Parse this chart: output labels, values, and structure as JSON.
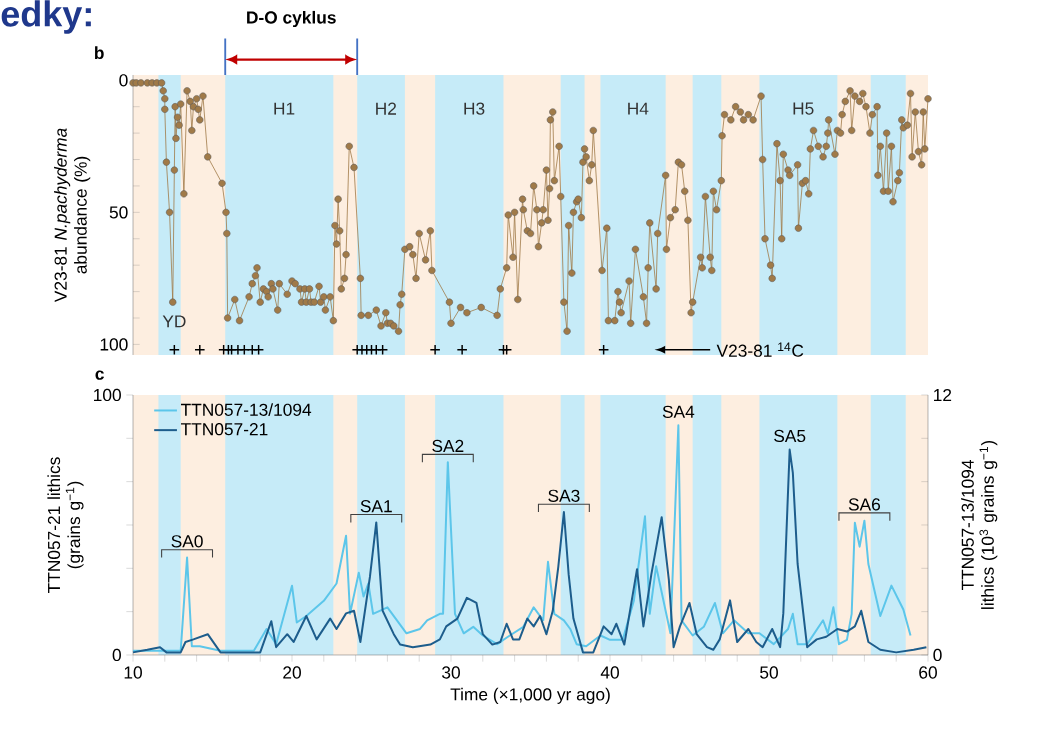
{
  "chart_data": [
    {
      "type": "line",
      "ylabel": "V23-81 *N.pachyderma* abundance (%)",
      "annotations": [
        "edky:",
        "D-O cyklus",
        "b"
      ],
      "xlim": [
        10,
        60
      ],
      "ylim": [
        104,
        -2
      ],
      "yticks": [
        0,
        {
          "value": 10,
          "label": null
        },
        {
          "value": 20,
          "label": null
        },
        {
          "value": 30,
          "label": null
        },
        {
          "value": 40,
          "label": null
        },
        50,
        {
          "value": 60,
          "label": null
        },
        {
          "value": 70,
          "label": null
        },
        {
          "value": 80,
          "label": null
        },
        {
          "value": 90,
          "label": null
        },
        100
      ],
      "tick_labels": "y",
      "marker": "circle",
      "bands": [
        {
          "axis": "x",
          "from": 10,
          "to": 60,
          "color": "#fdeee0"
        },
        {
          "axis": "x",
          "from": 11.6,
          "to": 13.0,
          "label": "YD",
          "color": "#c6ebf8"
        },
        {
          "axis": "x",
          "from": 15.8,
          "to": 22.6,
          "label": "H1",
          "color": "#c6ebf8"
        },
        {
          "axis": "x",
          "from": 24.1,
          "to": 27.1,
          "label": "H2",
          "color": "#c6ebf8"
        },
        {
          "axis": "x",
          "from": 29.0,
          "to": 33.3,
          "label": "H3",
          "color": "#c6ebf8"
        },
        {
          "axis": "x",
          "from": 36.9,
          "to": 38.4,
          "color": "#c6ebf8"
        },
        {
          "axis": "x",
          "from": 39.4,
          "to": 43.5,
          "label": "H4",
          "color": "#c6ebf8"
        },
        {
          "axis": "x",
          "from": 45.2,
          "to": 47.0,
          "color": "#c6ebf8"
        },
        {
          "axis": "x",
          "from": 49.4,
          "to": 54.3,
          "label": "H5",
          "color": "#c6ebf8"
        },
        {
          "axis": "x",
          "from": 56.4,
          "to": 58.6,
          "color": "#c6ebf8"
        }
      ],
      "series": [
        {
          "color": "#a07a48",
          "x": [
            10.0,
            10.2,
            10.5,
            10.9,
            11.2,
            11.5,
            11.8,
            11.9,
            12.0,
            12.0,
            12.1,
            12.3,
            12.5,
            12.6,
            12.65,
            12.7,
            12.8,
            12.9,
            13.0,
            13.2,
            13.4,
            13.6,
            13.7,
            13.8,
            14.0,
            14.1,
            14.2,
            14.4,
            14.7,
            15.6,
            15.85,
            15.9,
            15.95,
            16.4,
            16.7,
            17.3,
            17.5,
            17.7,
            17.8,
            18.0,
            18.2,
            18.4,
            18.5,
            18.7,
            18.8,
            19.1,
            19.2,
            19.7,
            20.0,
            20.2,
            20.5,
            20.6,
            20.8,
            20.9,
            21.1,
            21.2,
            21.4,
            21.7,
            21.8,
            22.0,
            22.1,
            22.4,
            22.6,
            22.7,
            22.8,
            22.9,
            23.0,
            23.1,
            23.3,
            23.4,
            23.6,
            23.9,
            24.3,
            24.35,
            24.8,
            25.3,
            25.6,
            25.9,
            26.0,
            26.2,
            26.4,
            26.7,
            26.8,
            26.9,
            27.1,
            27.4,
            27.6,
            27.8,
            28.0,
            28.4,
            28.7,
            28.8,
            29.9,
            30.0,
            30.6,
            31.0,
            31.9,
            32.9,
            33.1,
            33.5,
            33.6,
            33.9,
            34.0,
            34.2,
            34.5,
            34.55,
            34.8,
            35.0,
            35.2,
            35.4,
            35.5,
            35.7,
            35.8,
            36.0,
            36.1,
            36.2,
            36.25,
            36.4,
            36.5,
            36.8,
            36.9,
            37.1,
            37.3,
            37.4,
            37.6,
            37.7,
            37.9,
            38.0,
            38.2,
            38.3,
            38.4,
            38.5,
            38.7,
            38.85,
            38.95,
            39.5,
            39.8,
            39.9,
            40.3,
            40.5,
            40.6,
            40.7,
            41.2,
            41.3,
            41.6,
            42.1,
            42.3,
            42.4,
            42.5,
            42.9,
            43.0,
            43.5,
            43.55,
            43.8,
            44.1,
            44.3,
            44.5,
            44.7,
            44.9,
            45.1,
            45.2,
            45.7,
            45.8,
            46.0,
            46.3,
            46.4,
            46.5,
            46.7,
            47.0,
            47.05,
            47.2,
            47.6,
            47.9,
            48.2,
            48.4,
            48.7,
            49.0,
            49.5,
            49.6,
            49.75,
            50.1,
            50.2,
            50.5,
            50.7,
            50.8,
            50.9,
            51.2,
            51.3,
            51.8,
            51.85,
            52.1,
            52.3,
            52.5,
            52.6,
            52.8,
            53.1,
            53.4,
            53.6,
            53.7,
            53.75,
            54.15,
            54.3,
            54.5,
            54.6,
            54.8,
            55.1,
            55.2,
            55.4,
            55.7,
            55.9,
            56.1,
            56.35,
            56.5,
            56.8,
            56.85,
            57.0,
            57.2,
            57.4,
            57.5,
            57.7,
            57.8,
            58.1,
            58.2,
            58.35,
            58.45,
            58.7,
            58.9,
            59.0,
            59.2,
            59.4,
            59.6,
            59.7,
            59.8,
            60.0
          ],
          "values": [
            1,
            1,
            1,
            1,
            1,
            1,
            1,
            4,
            7,
            11,
            31,
            50,
            84,
            34,
            10,
            22,
            14,
            17,
            9,
            43,
            4,
            8,
            19,
            10,
            7,
            11,
            15,
            6,
            29,
            39,
            50,
            58,
            90,
            83,
            91,
            82,
            77,
            74,
            71,
            84,
            79,
            80,
            82,
            77,
            79,
            87,
            77,
            81,
            76,
            77,
            79,
            84,
            79,
            84,
            79,
            84,
            84,
            78,
            84,
            82,
            87,
            82,
            91,
            55,
            62,
            45,
            57,
            79,
            75,
            66,
            25,
            33,
            75,
            89,
            89,
            87,
            93,
            88,
            92,
            92,
            93,
            95,
            85,
            81,
            64,
            63,
            66,
            75,
            58,
            68,
            57,
            72,
            84,
            92,
            86,
            88,
            86,
            89,
            79,
            71,
            51,
            67,
            50,
            83,
            45,
            49,
            57,
            58,
            40,
            49,
            63,
            54,
            49,
            34,
            53,
            41,
            15,
            12,
            38,
            25,
            44,
            84,
            95,
            55,
            73,
            50,
            46,
            45,
            52,
            31,
            26,
            29,
            38,
            32,
            19,
            72,
            56,
            91,
            91,
            80,
            84,
            88,
            76,
            92,
            64,
            82,
            92,
            71,
            54,
            79,
            58,
            36,
            64,
            52,
            49,
            31,
            32,
            42,
            53,
            88,
            84,
            67,
            71,
            44,
            67,
            72,
            42,
            49,
            38,
            21,
            13,
            15,
            10,
            12,
            15,
            13,
            15,
            6,
            30,
            60,
            70,
            75,
            24,
            38,
            60,
            28,
            34,
            36,
            32,
            56,
            39,
            38,
            43,
            26,
            19,
            25,
            29,
            25,
            20,
            15,
            28,
            19,
            20,
            13,
            8,
            4,
            19,
            6,
            8,
            5,
            10,
            20,
            13,
            10,
            36,
            25,
            42,
            20,
            42,
            25,
            46,
            38,
            35,
            15,
            18,
            17,
            5,
            29,
            12,
            27,
            32,
            12,
            26,
            7
          ]
        },
        {
          "type": "scatter",
          "name": "V23-81 $^{14}$C",
          "marker": "cross",
          "color": "#000000",
          "x": [
            12.6,
            14.2,
            15.7,
            16.0,
            16.2,
            16.6,
            17.0,
            17.5,
            17.9,
            24.1,
            24.4,
            24.7,
            25.0,
            25.3,
            25.7,
            29.0,
            30.7,
            33.3,
            33.5,
            39.6
          ],
          "values": [
            102,
            102,
            102,
            102,
            102,
            102,
            102,
            102,
            102,
            102,
            102,
            102,
            102,
            102,
            102,
            102,
            102,
            102,
            102,
            102
          ]
        }
      ]
    },
    {
      "type": "line",
      "xlabel": "Time (×1,000 yr ago)",
      "ylabel": "TTN057-21 lithics (grains g$^{−1}$)",
      "y2label": "TTN057-13/1094 lithics (10$^{3}$ grains g$^{−1}$)",
      "annotations": [
        "c",
        {
          "text": "SA0",
          "x": 13.4,
          "y": 37.5
        },
        {
          "text": "SA1",
          "x": 25.3,
          "y": 51
        },
        {
          "text": "SA2",
          "x": 29.8,
          "y": 74.2
        },
        {
          "text": "SA3",
          "x": 37.1,
          "y": 55
        },
        {
          "text": "SA4",
          "x": 44.3,
          "y": 88.3
        },
        {
          "text": "SA5",
          "x": 51.3,
          "y": 79
        },
        {
          "text": "SA6",
          "x": 56.0,
          "y": 51.7
        }
      ],
      "legend": "top left",
      "xlim": [
        10,
        60
      ],
      "xticks": [
        10,
        {
          "value": 12,
          "label": null
        },
        {
          "value": 14,
          "label": null
        },
        {
          "value": 16,
          "label": null
        },
        {
          "value": 18,
          "label": null
        },
        20,
        {
          "value": 22,
          "label": null
        },
        {
          "value": 24,
          "label": null
        },
        {
          "value": 26,
          "label": null
        },
        {
          "value": 28,
          "label": null
        },
        30,
        {
          "value": 32,
          "label": null
        },
        {
          "value": 34,
          "label": null
        },
        {
          "value": 36,
          "label": null
        },
        {
          "value": 38,
          "label": null
        },
        40,
        {
          "value": 42,
          "label": null
        },
        {
          "value": 44,
          "label": null
        },
        {
          "value": 46,
          "label": null
        },
        {
          "value": 48,
          "label": null
        },
        50,
        {
          "value": 52,
          "label": null
        },
        {
          "value": 54,
          "label": null
        },
        {
          "value": 56,
          "label": null
        },
        {
          "value": 58,
          "label": null
        },
        60
      ],
      "ylim": [
        0,
        100
      ],
      "yticks": [
        0,
        {
          "value": 16.67,
          "label": null
        },
        {
          "value": 33.33,
          "label": null
        },
        {
          "value": 50,
          "label": null
        },
        {
          "value": 66.67,
          "label": null
        },
        {
          "value": 83.33,
          "label": null
        },
        100
      ],
      "y2lim": [
        0,
        12
      ],
      "y2ticks": [
        0,
        {
          "value": 2,
          "label": null
        },
        {
          "value": 4,
          "label": null
        },
        {
          "value": 6,
          "label": null
        },
        {
          "value": 8,
          "label": null
        },
        {
          "value": 10,
          "label": null
        },
        12
      ],
      "bands": [
        {
          "axis": "x",
          "from": 10,
          "to": 60,
          "color": "#fdeee0"
        },
        {
          "axis": "x",
          "from": 11.6,
          "to": 13.0,
          "color": "#c6ebf8"
        },
        {
          "axis": "x",
          "from": 15.8,
          "to": 22.6,
          "color": "#c6ebf8"
        },
        {
          "axis": "x",
          "from": 24.1,
          "to": 27.1,
          "color": "#c6ebf8"
        },
        {
          "axis": "x",
          "from": 29.0,
          "to": 33.3,
          "color": "#c6ebf8"
        },
        {
          "axis": "x",
          "from": 36.9,
          "to": 38.4,
          "color": "#c6ebf8"
        },
        {
          "axis": "x",
          "from": 39.4,
          "to": 43.5,
          "color": "#c6ebf8"
        },
        {
          "axis": "x",
          "from": 45.2,
          "to": 47.0,
          "color": "#c6ebf8"
        },
        {
          "axis": "x",
          "from": 49.4,
          "to": 54.3,
          "color": "#c6ebf8"
        },
        {
          "axis": "x",
          "from": 56.4,
          "to": 58.6,
          "color": "#c6ebf8"
        }
      ],
      "series": [
        {
          "name": "TTN057-13/1094",
          "color": "#5cc6ea",
          "axis": "y2",
          "x": [
            10.0,
            11.7,
            13.0,
            13.4,
            13.7,
            14.2,
            15.5,
            17.6,
            18.4,
            19.0,
            20.0,
            20.3,
            20.9,
            22.0,
            22.8,
            23.4,
            23.65,
            24.2,
            24.5,
            24.8,
            25.1,
            26.0,
            26.6,
            27.2,
            28.05,
            28.5,
            29.3,
            29.5,
            29.8,
            30.25,
            30.8,
            31.4,
            32.0,
            32.9,
            33.7,
            34.55,
            35.2,
            35.8,
            36.1,
            36.5,
            37.1,
            37.5,
            37.9,
            38.5,
            39.4,
            40.0,
            40.8,
            41.5,
            42.2,
            42.5,
            42.9,
            43.8,
            44.3,
            44.5,
            45.2,
            45.9,
            46.6,
            47.1,
            47.8,
            48.7,
            49.4,
            50.3,
            51.2,
            51.5,
            51.8,
            52.4,
            53.4,
            53.7,
            54.05,
            54.4,
            54.9,
            55.2,
            55.4,
            55.7,
            56.0,
            56.25,
            57.0,
            57.7,
            58.45,
            58.9
          ],
          "values": [
            0.2,
            0.2,
            0.2,
            4.5,
            0.4,
            0.4,
            0.2,
            0.2,
            1.2,
            0.5,
            3.2,
            1.5,
            1.8,
            2.5,
            3.3,
            5.5,
            1.9,
            3.8,
            2.7,
            3.3,
            1.9,
            2.2,
            1.6,
            1.0,
            1.2,
            1.6,
            1.9,
            1.9,
            8.9,
            1.9,
            1.0,
            1.3,
            0.9,
            0.5,
            0.9,
            1.3,
            2.2,
            1.6,
            4.3,
            1.9,
            1.6,
            1.2,
            0.5,
            0.4,
            0.9,
            0.7,
            0.7,
            2.5,
            6.4,
            1.9,
            4.1,
            1.0,
            10.6,
            1.6,
            0.9,
            1.3,
            2.4,
            1.0,
            1.6,
            1.0,
            1.0,
            0.5,
            1.2,
            1.9,
            0.5,
            0.5,
            1.6,
            1.0,
            2.2,
            0.5,
            0.7,
            1.9,
            6.1,
            5.0,
            6.2,
            4.2,
            1.8,
            3.2,
            2.1,
            0.9
          ]
        },
        {
          "name": "TTN057-21",
          "color": "#1d5d8c",
          "x": [
            10.0,
            10.9,
            11.7,
            12.1,
            13.0,
            13.3,
            13.8,
            14.7,
            15.5,
            18.0,
            18.7,
            19.0,
            19.7,
            20.1,
            20.9,
            21.55,
            22.4,
            22.8,
            23.4,
            23.9,
            24.3,
            24.9,
            25.3,
            25.7,
            26.4,
            26.8,
            27.6,
            28.7,
            29.3,
            29.7,
            30.4,
            31.0,
            31.6,
            32.0,
            32.6,
            33.1,
            33.5,
            33.9,
            34.3,
            34.8,
            35.2,
            35.6,
            36.0,
            36.4,
            36.75,
            37.1,
            37.4,
            37.7,
            38.3,
            38.95,
            39.6,
            40.1,
            40.4,
            40.9,
            41.7,
            42.1,
            42.6,
            43.25,
            43.7,
            44.0,
            44.4,
            45.0,
            45.45,
            46.1,
            46.5,
            46.9,
            47.55,
            48.0,
            48.7,
            49.2,
            49.6,
            50.2,
            50.7,
            50.9,
            51.3,
            51.5,
            51.8,
            52.4,
            53.0,
            53.6,
            54.3,
            54.9,
            55.4,
            55.8,
            56.25,
            57.0,
            58.0,
            59.1,
            59.9
          ],
          "values": [
            1,
            2,
            3,
            1,
            1,
            5,
            6,
            8,
            1,
            1,
            13,
            3,
            8,
            5,
            15,
            6,
            14,
            10,
            16,
            17,
            5,
            30,
            51,
            17,
            8,
            4,
            3,
            4,
            6,
            11,
            14,
            22,
            20,
            8,
            4,
            5,
            12,
            6,
            6,
            14,
            11,
            15,
            8,
            17,
            34,
            55,
            31,
            14,
            1,
            1,
            11,
            8,
            12,
            4,
            33,
            11,
            31,
            53,
            29,
            3,
            11,
            20,
            8,
            3,
            2,
            6,
            21,
            5,
            10,
            5,
            3,
            10,
            3,
            16,
            79,
            70,
            35,
            3,
            6,
            7,
            10,
            9,
            11,
            17,
            5,
            2,
            1,
            2,
            3
          ]
        }
      ]
    }
  ]
}
